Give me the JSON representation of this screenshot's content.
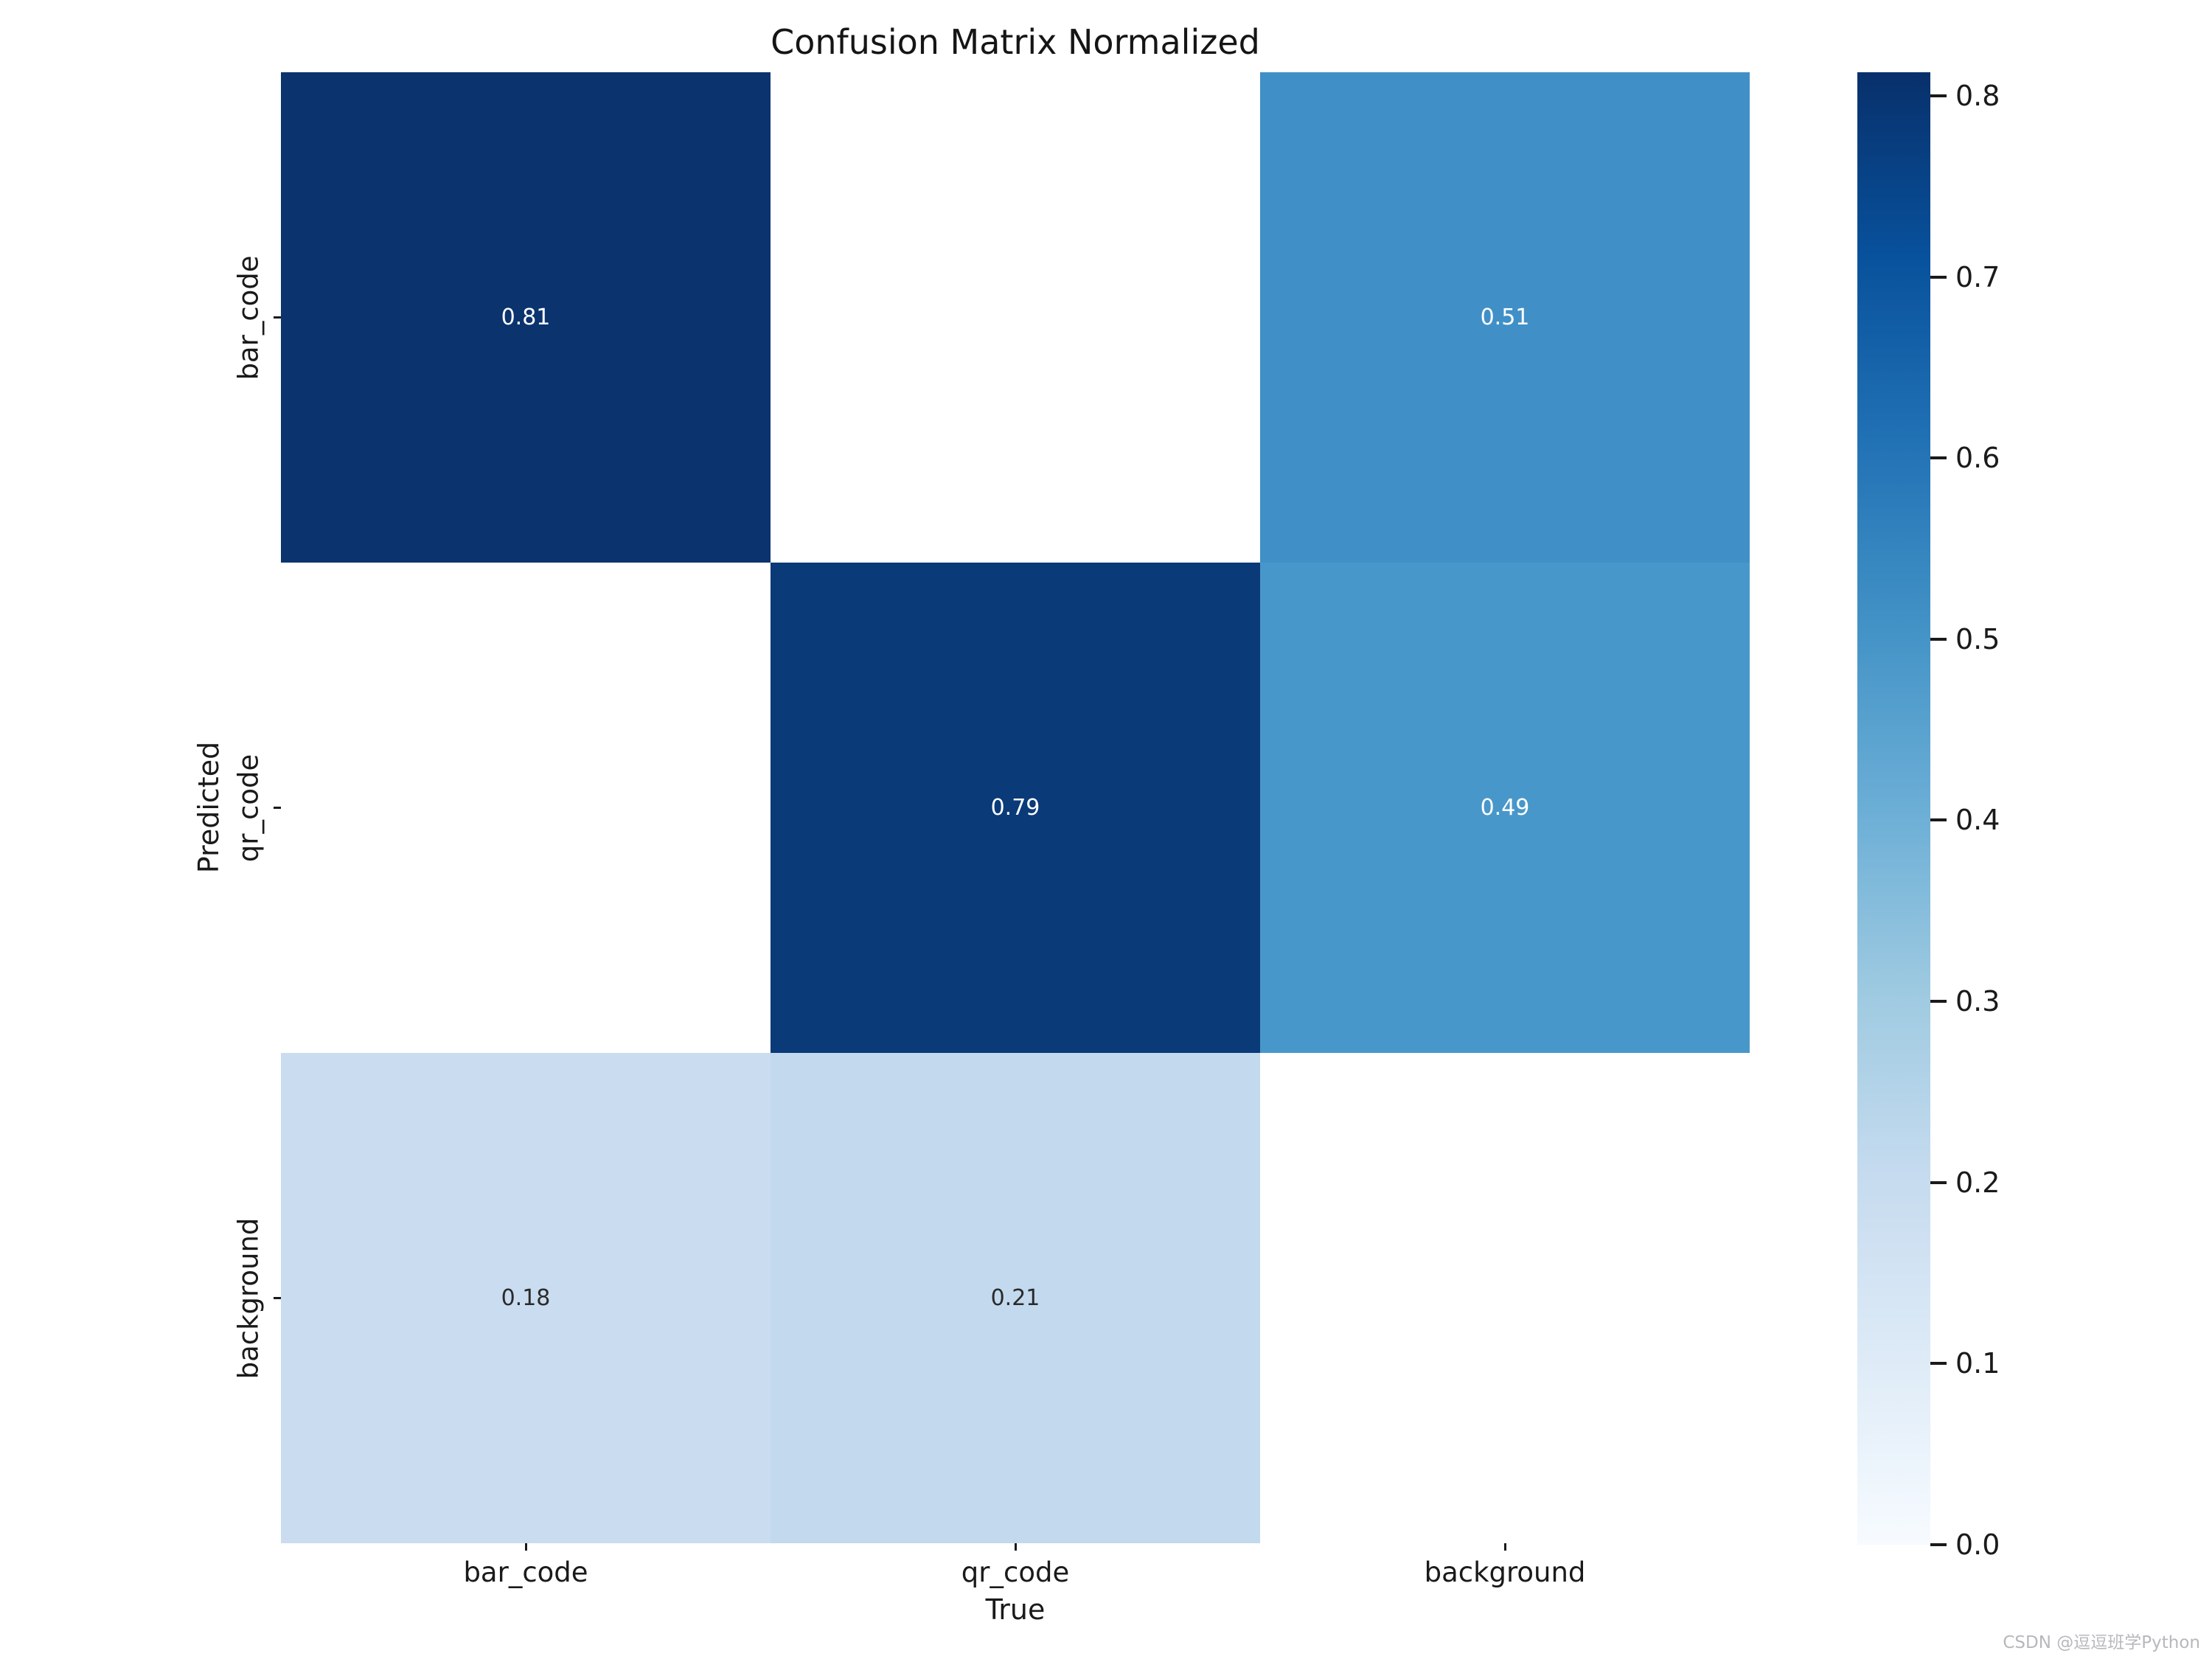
{
  "title": "Confusion Matrix Normalized",
  "watermark": "CSDN @逗逗班学Python",
  "colors": {
    "figure_background": "#ffffff",
    "masked_cell": "#ffffff",
    "annot_light_text": "#ffffff",
    "annot_dark_text": "#2a2a2a",
    "tick_and_label_text": "#1a1a1a",
    "watermark_text": "#b8b8bc",
    "colormap_max": "#08306b",
    "colormap_min": "#f7fbff"
  },
  "chart_data": {
    "type": "heatmap",
    "title": "Confusion Matrix Normalized",
    "xlabel": "True",
    "ylabel": "Predicted",
    "x_categories": [
      "bar_code",
      "qr_code",
      "background"
    ],
    "y_categories": [
      "bar_code",
      "qr_code",
      "background"
    ],
    "matrix_note": "rows = Predicted, columns = True; null = masked/blank cell",
    "matrix": [
      [
        0.81,
        null,
        0.51
      ],
      [
        null,
        0.79,
        0.49
      ],
      [
        0.18,
        0.21,
        null
      ]
    ],
    "cell_colors": [
      [
        "#0b336e",
        "#ffffff",
        "#4090c7"
      ],
      [
        "#ffffff",
        "#0a3a78",
        "#4897ca"
      ],
      [
        "#cadcf0",
        "#c2d9ee",
        "#ffffff"
      ]
    ],
    "annot_decimals": 2,
    "annot_dark_threshold": 0.4,
    "grid": false,
    "colorbar": {
      "position": "right",
      "vmin": 0.0,
      "vmax": 0.813,
      "ticks": [
        0.8,
        0.7,
        0.6,
        0.5,
        0.4,
        0.3,
        0.2,
        0.1,
        0.0
      ],
      "tick_decimals": 1,
      "gradient_stops": [
        {
          "pos": 0.0,
          "color": "#f7fbff"
        },
        {
          "pos": 0.125,
          "color": "#deebf7"
        },
        {
          "pos": 0.25,
          "color": "#c6dbef"
        },
        {
          "pos": 0.375,
          "color": "#9ecae1"
        },
        {
          "pos": 0.5,
          "color": "#6baed6"
        },
        {
          "pos": 0.625,
          "color": "#4292c6"
        },
        {
          "pos": 0.75,
          "color": "#2171b5"
        },
        {
          "pos": 0.875,
          "color": "#08519c"
        },
        {
          "pos": 1.0,
          "color": "#08306b"
        }
      ]
    }
  }
}
